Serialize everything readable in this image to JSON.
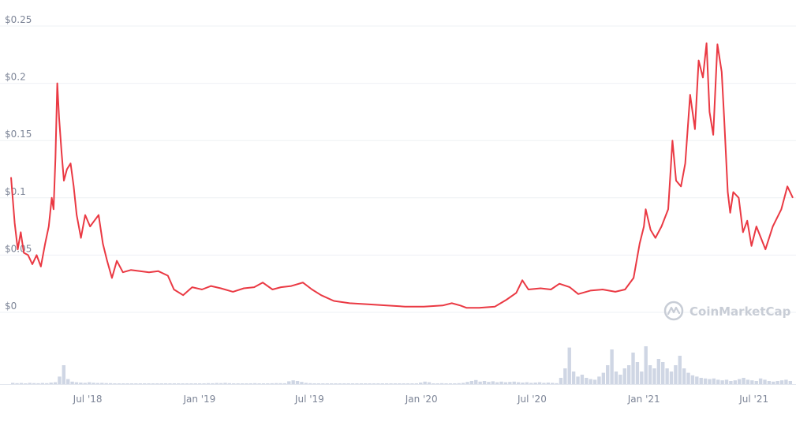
{
  "chart_data": {
    "type": "line",
    "title": "",
    "xlabel": "",
    "ylabel": "",
    "ylim": [
      0,
      0.25
    ],
    "xlim": [
      "2018-02-25",
      "2021-09-03"
    ],
    "y_ticks": [
      {
        "value": 0,
        "label": "$0"
      },
      {
        "value": 0.05,
        "label": "$0.05"
      },
      {
        "value": 0.1,
        "label": "$0.1"
      },
      {
        "value": 0.15,
        "label": "$0.15"
      },
      {
        "value": 0.2,
        "label": "$0.2"
      },
      {
        "value": 0.25,
        "label": "$0.25"
      }
    ],
    "x_ticks": [
      {
        "date": "2018-07-01",
        "label": "Jul '18"
      },
      {
        "date": "2019-01-01",
        "label": "Jan '19"
      },
      {
        "date": "2019-07-01",
        "label": "Jul '19"
      },
      {
        "date": "2020-01-01",
        "label": "Jan '20"
      },
      {
        "date": "2020-07-01",
        "label": "Jul '20"
      },
      {
        "date": "2021-01-01",
        "label": "Jan '21"
      },
      {
        "date": "2021-07-01",
        "label": "Jul '21"
      }
    ],
    "grid": true,
    "series": [
      {
        "color": "#ea3943",
        "points": [
          [
            "2018-02-25",
            0.118
          ],
          [
            "2018-03-03",
            0.078
          ],
          [
            "2018-03-08",
            0.055
          ],
          [
            "2018-03-13",
            0.07
          ],
          [
            "2018-03-18",
            0.052
          ],
          [
            "2018-03-25",
            0.05
          ],
          [
            "2018-04-01",
            0.042
          ],
          [
            "2018-04-08",
            0.05
          ],
          [
            "2018-04-15",
            0.04
          ],
          [
            "2018-04-22",
            0.06
          ],
          [
            "2018-04-28",
            0.075
          ],
          [
            "2018-05-03",
            0.1
          ],
          [
            "2018-05-06",
            0.09
          ],
          [
            "2018-05-09",
            0.135
          ],
          [
            "2018-05-12",
            0.2
          ],
          [
            "2018-05-15",
            0.17
          ],
          [
            "2018-05-19",
            0.14
          ],
          [
            "2018-05-23",
            0.115
          ],
          [
            "2018-05-28",
            0.125
          ],
          [
            "2018-06-03",
            0.13
          ],
          [
            "2018-06-08",
            0.11
          ],
          [
            "2018-06-13",
            0.085
          ],
          [
            "2018-06-20",
            0.065
          ],
          [
            "2018-06-27",
            0.085
          ],
          [
            "2018-07-05",
            0.075
          ],
          [
            "2018-07-12",
            0.08
          ],
          [
            "2018-07-19",
            0.085
          ],
          [
            "2018-07-26",
            0.06
          ],
          [
            "2018-08-02",
            0.045
          ],
          [
            "2018-08-10",
            0.03
          ],
          [
            "2018-08-18",
            0.045
          ],
          [
            "2018-08-28",
            0.035
          ],
          [
            "2018-09-10",
            0.037
          ],
          [
            "2018-09-25",
            0.036
          ],
          [
            "2018-10-10",
            0.035
          ],
          [
            "2018-10-25",
            0.036
          ],
          [
            "2018-11-10",
            0.032
          ],
          [
            "2018-11-20",
            0.02
          ],
          [
            "2018-12-05",
            0.015
          ],
          [
            "2018-12-20",
            0.022
          ],
          [
            "2019-01-05",
            0.02
          ],
          [
            "2019-01-20",
            0.023
          ],
          [
            "2019-02-05",
            0.021
          ],
          [
            "2019-02-25",
            0.018
          ],
          [
            "2019-03-15",
            0.021
          ],
          [
            "2019-04-01",
            0.022
          ],
          [
            "2019-04-15",
            0.026
          ],
          [
            "2019-05-01",
            0.02
          ],
          [
            "2019-05-15",
            0.022
          ],
          [
            "2019-06-01",
            0.023
          ],
          [
            "2019-06-20",
            0.026
          ],
          [
            "2019-07-05",
            0.02
          ],
          [
            "2019-07-20",
            0.015
          ],
          [
            "2019-08-10",
            0.01
          ],
          [
            "2019-09-05",
            0.008
          ],
          [
            "2019-10-05",
            0.007
          ],
          [
            "2019-11-05",
            0.006
          ],
          [
            "2019-12-05",
            0.005
          ],
          [
            "2020-01-05",
            0.005
          ],
          [
            "2020-02-05",
            0.006
          ],
          [
            "2020-02-20",
            0.008
          ],
          [
            "2020-03-05",
            0.006
          ],
          [
            "2020-03-15",
            0.004
          ],
          [
            "2020-04-05",
            0.004
          ],
          [
            "2020-05-01",
            0.005
          ],
          [
            "2020-05-20",
            0.011
          ],
          [
            "2020-06-05",
            0.017
          ],
          [
            "2020-06-15",
            0.028
          ],
          [
            "2020-06-25",
            0.02
          ],
          [
            "2020-07-15",
            0.021
          ],
          [
            "2020-08-01",
            0.02
          ],
          [
            "2020-08-15",
            0.025
          ],
          [
            "2020-09-01",
            0.022
          ],
          [
            "2020-09-15",
            0.016
          ],
          [
            "2020-10-05",
            0.019
          ],
          [
            "2020-10-25",
            0.02
          ],
          [
            "2020-11-15",
            0.018
          ],
          [
            "2020-12-01",
            0.02
          ],
          [
            "2020-12-15",
            0.03
          ],
          [
            "2020-12-25",
            0.06
          ],
          [
            "2021-01-01",
            0.075
          ],
          [
            "2021-01-04",
            0.09
          ],
          [
            "2021-01-12",
            0.072
          ],
          [
            "2021-01-20",
            0.065
          ],
          [
            "2021-01-30",
            0.075
          ],
          [
            "2021-02-10",
            0.09
          ],
          [
            "2021-02-17",
            0.15
          ],
          [
            "2021-02-23",
            0.115
          ],
          [
            "2021-03-03",
            0.11
          ],
          [
            "2021-03-10",
            0.13
          ],
          [
            "2021-03-18",
            0.19
          ],
          [
            "2021-03-26",
            0.16
          ],
          [
            "2021-04-01",
            0.22
          ],
          [
            "2021-04-08",
            0.205
          ],
          [
            "2021-04-14",
            0.235
          ],
          [
            "2021-04-19",
            0.175
          ],
          [
            "2021-04-25",
            0.155
          ],
          [
            "2021-05-02",
            0.234
          ],
          [
            "2021-05-09",
            0.21
          ],
          [
            "2021-05-13",
            0.17
          ],
          [
            "2021-05-19",
            0.105
          ],
          [
            "2021-05-23",
            0.087
          ],
          [
            "2021-05-28",
            0.105
          ],
          [
            "2021-06-06",
            0.1
          ],
          [
            "2021-06-13",
            0.07
          ],
          [
            "2021-06-20",
            0.08
          ],
          [
            "2021-06-27",
            0.058
          ],
          [
            "2021-07-05",
            0.075
          ],
          [
            "2021-07-20",
            0.055
          ],
          [
            "2021-08-01",
            0.075
          ],
          [
            "2021-08-15",
            0.09
          ],
          [
            "2021-08-25",
            0.11
          ],
          [
            "2021-09-03",
            0.1
          ]
        ]
      }
    ],
    "volume_bars": [
      [
        0.02,
        0.015,
        0.018,
        0.012,
        0.02,
        0.016,
        0.014,
        0.018,
        0.015,
        0.025,
        0.03,
        0.12,
        0.3,
        0.08,
        0.04,
        0.03,
        0.025,
        0.02,
        0.03,
        0.022,
        0.018,
        0.02,
        0.016,
        0.015
      ],
      [
        0.012,
        0.01,
        0.012,
        0.009,
        0.01,
        0.012,
        0.008,
        0.01,
        0.009,
        0.012,
        0.01,
        0.011,
        0.013,
        0.01,
        0.009,
        0.01,
        0.012,
        0.011,
        0.01,
        0.009
      ],
      [
        0.01,
        0.012,
        0.015,
        0.014,
        0.018,
        0.016,
        0.02,
        0.015,
        0.012,
        0.01,
        0.012,
        0.011,
        0.013,
        0.015,
        0.012,
        0.01,
        0.012,
        0.014,
        0.016,
        0.015,
        0.014,
        0.045,
        0.06,
        0.05,
        0.035,
        0.02,
        0.015
      ],
      [
        0.01,
        0.008,
        0.009,
        0.008,
        0.009,
        0.008,
        0.007,
        0.008,
        0.009,
        0.007,
        0.008,
        0.01,
        0.008,
        0.009,
        0.008,
        0.007,
        0.008,
        0.007,
        0.008,
        0.009,
        0.008,
        0.007,
        0.008,
        0.007,
        0.012,
        0.025,
        0.04,
        0.03
      ],
      [
        0.01,
        0.012,
        0.015,
        0.012,
        0.01,
        0.012,
        0.015,
        0.02,
        0.035,
        0.05,
        0.065,
        0.04,
        0.05,
        0.035,
        0.045,
        0.03,
        0.04,
        0.03,
        0.035,
        0.04,
        0.03,
        0.025,
        0.03,
        0.02,
        0.025,
        0.03,
        0.02,
        0.025,
        0.02,
        0.015
      ],
      [
        0.1,
        0.25,
        0.58,
        0.2,
        0.12,
        0.15,
        0.1,
        0.08,
        0.07,
        0.12,
        0.18,
        0.3,
        0.55,
        0.2,
        0.15,
        0.25,
        0.3,
        0.5,
        0.35,
        0.2,
        0.6,
        0.3,
        0.25,
        0.4,
        0.35,
        0.25,
        0.2,
        0.3,
        0.45,
        0.25
      ],
      [
        0.18,
        0.14,
        0.12,
        0.1,
        0.09,
        0.08,
        0.09,
        0.07,
        0.06,
        0.07,
        0.05,
        0.06,
        0.08,
        0.1,
        0.07,
        0.06,
        0.05,
        0.09,
        0.07,
        0.05,
        0.04,
        0.05,
        0.06,
        0.07,
        0.05
      ]
    ]
  },
  "watermark": {
    "text": "CoinMarketCap"
  },
  "colors": {
    "line": "#ea3943",
    "volume": "#cfd6e4",
    "grid": "#eef0f4",
    "tick_text": "#7d8597",
    "watermark": "#c8cdd6"
  }
}
